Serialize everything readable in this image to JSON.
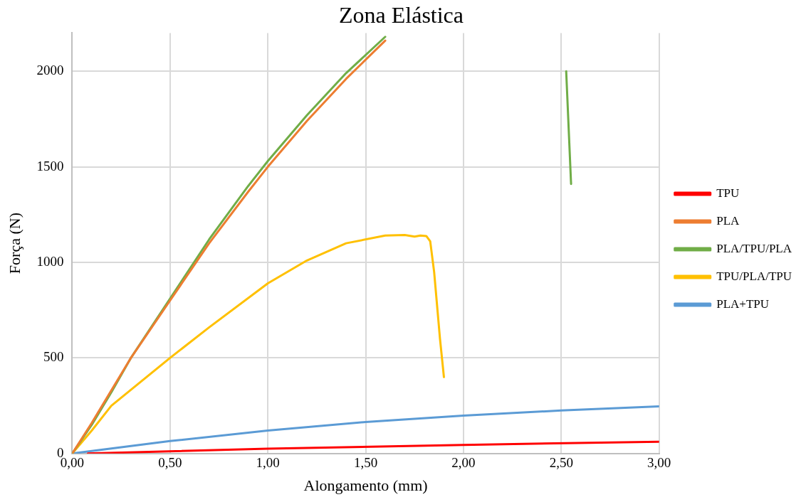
{
  "chart_data": {
    "type": "line",
    "title": "Zona Elástica",
    "xlabel": "Alongamento (mm)",
    "ylabel": "Força (N)",
    "xlim": [
      0,
      3
    ],
    "xticks": [
      {
        "value": 0,
        "label": "0,00"
      },
      {
        "value": 0.5,
        "label": "0,50"
      },
      {
        "value": 1,
        "label": "1,00"
      },
      {
        "value": 1.5,
        "label": "1,50"
      },
      {
        "value": 2,
        "label": "2,00"
      },
      {
        "value": 2.5,
        "label": "2,50"
      },
      {
        "value": 3,
        "label": "3,00"
      }
    ],
    "ylim": [
      0,
      2200
    ],
    "yticks": [
      0,
      500,
      1000,
      1500,
      2000
    ],
    "grid": true,
    "legend": "right",
    "marker": "none",
    "series": [
      {
        "name": "TPU",
        "color": "#ff0000",
        "x": [
          0.08,
          1.0,
          2.0,
          3.0
        ],
        "values": [
          0,
          25,
          45,
          62
        ]
      },
      {
        "name": "PLA",
        "color": "#ed7d31",
        "x": [
          0,
          0.1,
          0.2,
          0.3,
          0.5,
          0.7,
          0.9,
          1.0,
          1.2,
          1.4,
          1.6
        ],
        "values": [
          0,
          160,
          330,
          500,
          800,
          1100,
          1370,
          1500,
          1740,
          1960,
          2160
        ]
      },
      {
        "name": "PLA/TPU/PLA",
        "color": "#70ad47",
        "x": [
          0,
          0.1,
          0.2,
          0.3,
          0.5,
          0.7,
          0.9,
          1.0,
          1.2,
          1.4,
          1.6,
          2.0,
          2.525,
          2.55
        ],
        "values": [
          0,
          150,
          320,
          500,
          810,
          1120,
          1400,
          1530,
          1770,
          1990,
          2180,
          null,
          2000,
          1410
        ]
      },
      {
        "name": "TPU/PLA/TPU",
        "color": "#ffc000",
        "x": [
          0,
          0.1,
          0.2,
          0.5,
          0.7,
          1.0,
          1.2,
          1.4,
          1.6,
          1.7,
          1.75,
          1.78,
          1.81,
          1.83,
          1.85,
          1.88,
          1.9
        ],
        "values": [
          0,
          120,
          250,
          500,
          660,
          890,
          1010,
          1100,
          1140,
          1143,
          1135,
          1140,
          1138,
          1110,
          950,
          600,
          400
        ]
      },
      {
        "name": "PLA+TPU",
        "color": "#5b9bd5",
        "x": [
          0,
          0.5,
          1.0,
          1.5,
          2.0,
          2.5,
          3.0
        ],
        "values": [
          0,
          65,
          120,
          165,
          198,
          225,
          247
        ]
      }
    ]
  }
}
